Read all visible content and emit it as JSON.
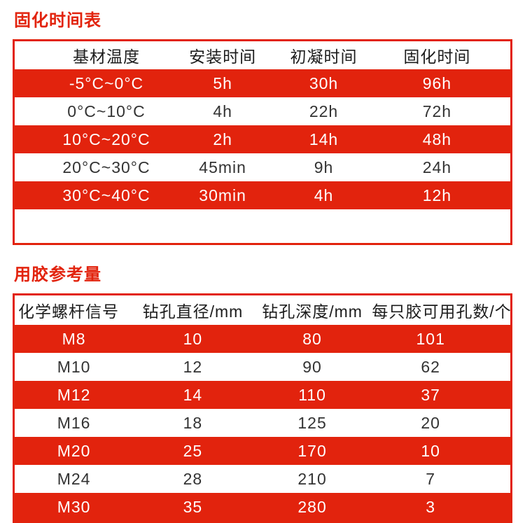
{
  "colors": {
    "accent": "#e2230d",
    "row_light_bg": "#ffffff",
    "row_dark_text": "#333333",
    "row_light_text": "#ffffff",
    "header_text": "#1c1c1c"
  },
  "chart_data": [
    {
      "type": "table",
      "title": "固化时间表",
      "columns": [
        "基材温度",
        "安装时间",
        "初凝时间",
        "固化时间"
      ],
      "rows": [
        [
          "-5°C~0°C",
          "5h",
          "30h",
          "96h"
        ],
        [
          "0°C~10°C",
          "4h",
          "22h",
          "72h"
        ],
        [
          "10°C~20°C",
          "2h",
          "14h",
          "48h"
        ],
        [
          "20°C~30°C",
          "45min",
          "9h",
          "24h"
        ],
        [
          "30°C~40°C",
          "30min",
          "4h",
          "12h"
        ]
      ],
      "layout_hints": "rows alternate red/white starting with red; empty white row at bottom; red 3px outer border"
    },
    {
      "type": "table",
      "title": "用胶参考量",
      "columns": [
        "化学螺杆信号",
        "钻孔直径/mm",
        "钻孔深度/mm",
        "每只胶可用孔数/个"
      ],
      "rows": [
        [
          "M8",
          "10",
          "80",
          "101"
        ],
        [
          "M10",
          "12",
          "90",
          "62"
        ],
        [
          "M12",
          "14",
          "110",
          "37"
        ],
        [
          "M16",
          "18",
          "125",
          "20"
        ],
        [
          "M20",
          "25",
          "170",
          "10"
        ],
        [
          "M24",
          "28",
          "210",
          "7"
        ],
        [
          "M30",
          "35",
          "280",
          "3"
        ]
      ],
      "layout_hints": "rows alternate red/white starting with red; first header cell left-aligned; red 3px outer border"
    }
  ]
}
